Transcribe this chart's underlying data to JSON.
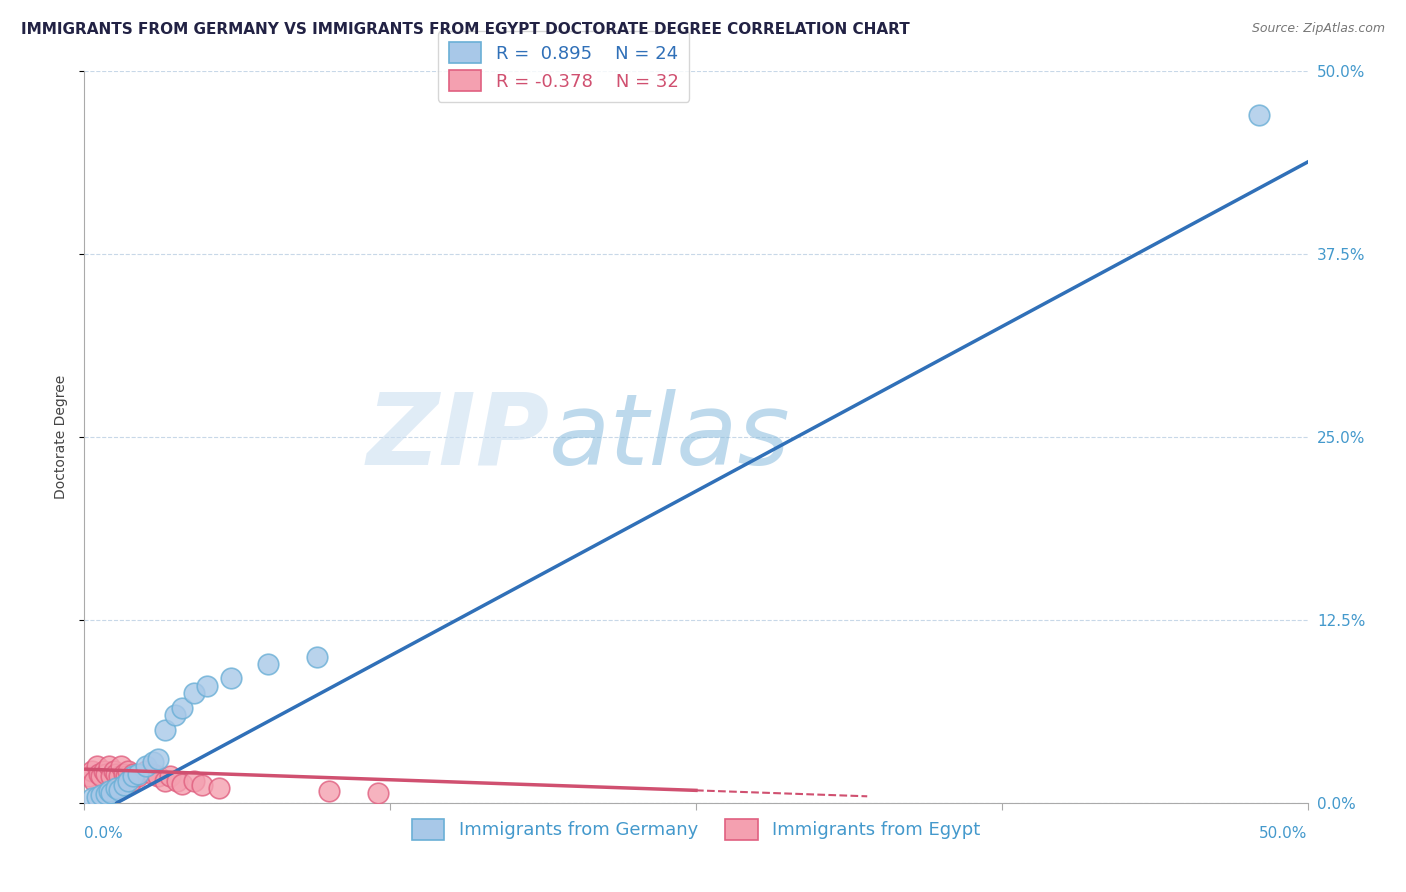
{
  "title": "IMMIGRANTS FROM GERMANY VS IMMIGRANTS FROM EGYPT DOCTORATE DEGREE CORRELATION CHART",
  "source": "Source: ZipAtlas.com",
  "ylabel": "Doctorate Degree",
  "xlim": [
    0,
    0.5
  ],
  "ylim": [
    0,
    0.5
  ],
  "xticks": [
    0.0,
    0.125,
    0.25,
    0.375,
    0.5
  ],
  "ytick_labels_right": [
    "0.0%",
    "12.5%",
    "25.0%",
    "37.5%",
    "50.0%"
  ],
  "yticks": [
    0.0,
    0.125,
    0.25,
    0.375,
    0.5
  ],
  "germany_color": "#a8c8e8",
  "egypt_color": "#f4a0b0",
  "germany_edge": "#6aafd6",
  "egypt_edge": "#e06080",
  "regression_germany_color": "#3070b8",
  "regression_egypt_color": "#d05070",
  "R_germany": 0.895,
  "N_germany": 24,
  "R_egypt": -0.378,
  "N_egypt": 32,
  "background_color": "#ffffff",
  "grid_color": "#c8d8e8",
  "germany_scatter_x": [
    0.003,
    0.005,
    0.007,
    0.009,
    0.01,
    0.011,
    0.013,
    0.014,
    0.016,
    0.018,
    0.02,
    0.022,
    0.025,
    0.028,
    0.03,
    0.033,
    0.037,
    0.04,
    0.045,
    0.05,
    0.06,
    0.075,
    0.095,
    0.48
  ],
  "germany_scatter_y": [
    0.003,
    0.004,
    0.005,
    0.006,
    0.008,
    0.007,
    0.01,
    0.009,
    0.012,
    0.015,
    0.018,
    0.02,
    0.025,
    0.028,
    0.03,
    0.05,
    0.06,
    0.065,
    0.075,
    0.08,
    0.085,
    0.095,
    0.1,
    0.47
  ],
  "egypt_scatter_x": [
    0.002,
    0.003,
    0.004,
    0.005,
    0.006,
    0.007,
    0.008,
    0.009,
    0.01,
    0.011,
    0.012,
    0.013,
    0.014,
    0.015,
    0.016,
    0.017,
    0.018,
    0.019,
    0.02,
    0.022,
    0.025,
    0.028,
    0.03,
    0.033,
    0.035,
    0.038,
    0.04,
    0.045,
    0.048,
    0.055,
    0.1,
    0.12
  ],
  "egypt_scatter_y": [
    0.018,
    0.022,
    0.015,
    0.025,
    0.02,
    0.018,
    0.022,
    0.02,
    0.025,
    0.018,
    0.022,
    0.02,
    0.018,
    0.025,
    0.02,
    0.018,
    0.022,
    0.015,
    0.02,
    0.018,
    0.022,
    0.02,
    0.018,
    0.015,
    0.018,
    0.015,
    0.013,
    0.015,
    0.012,
    0.01,
    0.008,
    0.007
  ],
  "title_fontsize": 11,
  "axis_label_fontsize": 10,
  "tick_fontsize": 11,
  "legend_fontsize": 13
}
